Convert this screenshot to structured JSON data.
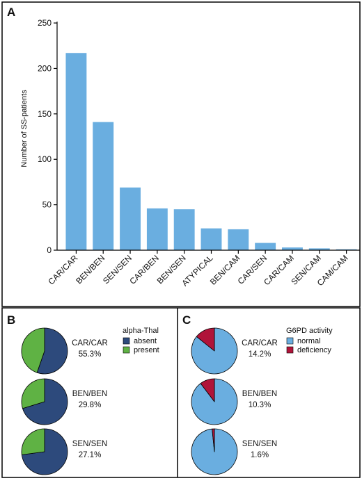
{
  "panels": {
    "a": {
      "letter": "A"
    },
    "b": {
      "letter": "B"
    },
    "c": {
      "letter": "C"
    }
  },
  "chart_data": [
    {
      "type": "bar",
      "ylabel": "Number of SS-patients",
      "xlabel": "",
      "ylim": [
        0,
        260
      ],
      "yticks": [
        0,
        50,
        100,
        150,
        200,
        250
      ],
      "categories": [
        "CAR/CAR",
        "BEN/BEN",
        "SEN/SEN",
        "CAR/BEN",
        "BEN/SEN",
        "ATYPICAL",
        "BEN/CAM",
        "CAR/SEN",
        "CAR/CAM",
        "SEN/CAM",
        "CAM/CAM"
      ],
      "values": [
        217,
        141,
        69,
        46,
        45,
        24,
        23,
        8,
        3,
        2,
        1
      ],
      "color": "#6aaee0",
      "grid": false
    },
    {
      "type": "pie",
      "legend_title": "alpha-Thal",
      "legend": [
        {
          "name": "absent",
          "color": "#2d4a7c"
        },
        {
          "name": "present",
          "color": "#5fb244"
        }
      ],
      "pies": [
        {
          "label": "CAR/CAR",
          "value_text": "55.3%",
          "slices": [
            55.3,
            44.7
          ]
        },
        {
          "label": "BEN/BEN",
          "value_text": "29.8%",
          "slices": [
            70.2,
            29.8
          ]
        },
        {
          "label": "SEN/SEN",
          "value_text": "27.1%",
          "slices": [
            72.9,
            27.1
          ]
        }
      ]
    },
    {
      "type": "pie",
      "legend_title": "G6PD activity",
      "legend": [
        {
          "name": "normal",
          "color": "#6aaee0"
        },
        {
          "name": "deficiency",
          "color": "#b0143a"
        }
      ],
      "pies": [
        {
          "label": "CAR/CAR",
          "value_text": "14.2%",
          "slices": [
            85.8,
            14.2
          ]
        },
        {
          "label": "BEN/BEN",
          "value_text": "10.3%",
          "slices": [
            89.7,
            10.3
          ]
        },
        {
          "label": "SEN/SEN",
          "value_text": "1.6%",
          "slices": [
            98.4,
            1.6
          ]
        }
      ]
    }
  ]
}
